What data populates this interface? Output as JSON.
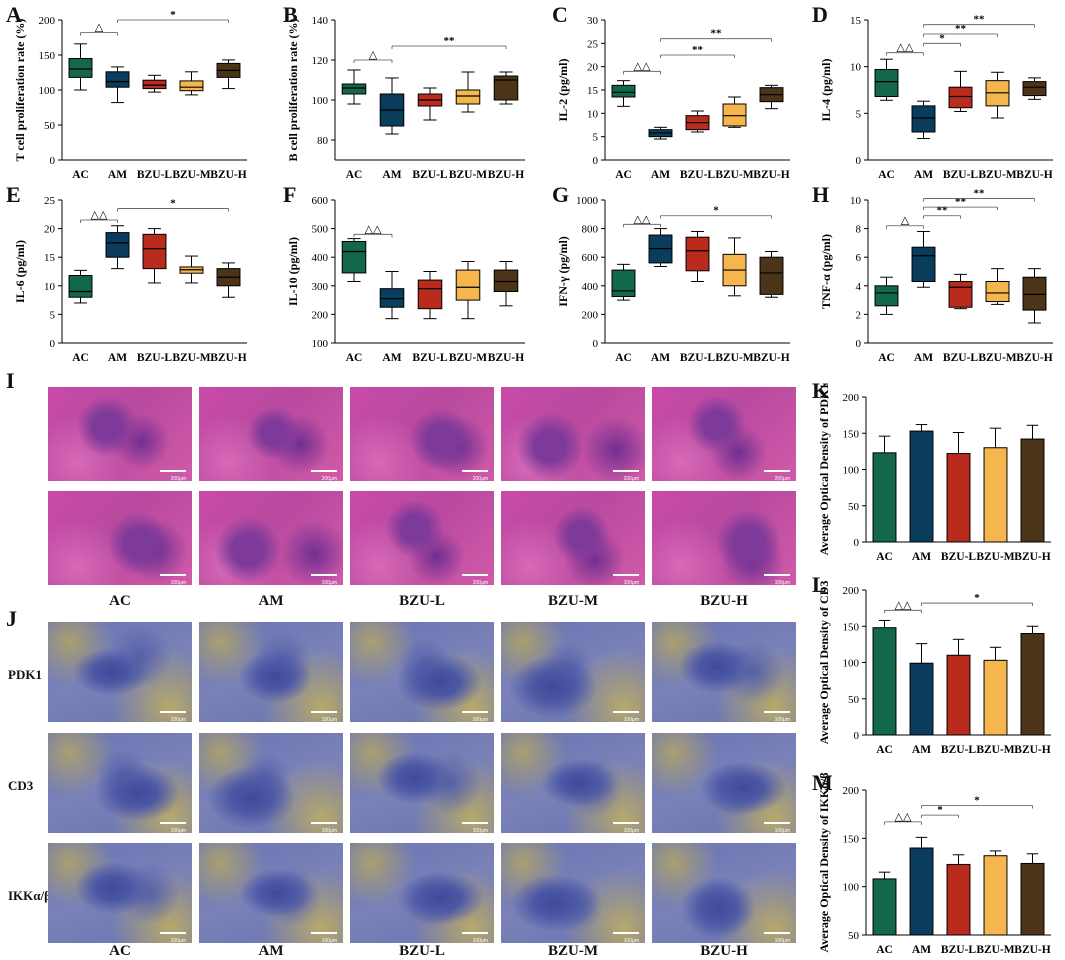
{
  "colors": {
    "AC": "#13674a",
    "AM": "#0a3c5e",
    "BZU-L": "#b92b1d",
    "BZU-M": "#f5b64e",
    "BZU-H": "#4c3419",
    "he_a": "#c84aa8",
    "he_b": "#7e3a9a",
    "ihc_a": "#6b74b4",
    "ihc_b": "#b7a96a"
  },
  "panel_letters": [
    "A",
    "B",
    "C",
    "D",
    "E",
    "F",
    "G",
    "H",
    "I",
    "J",
    "K",
    "L",
    "M"
  ],
  "images": {
    "I": {
      "columns": [
        "AC",
        "AM",
        "BZU-L",
        "BZU-M",
        "BZU-H"
      ],
      "scalebar_top": "200μm",
      "scalebar_bottom": "100μm"
    },
    "J": {
      "columns": [
        "AC",
        "AM",
        "BZU-L",
        "BZU-M",
        "BZU-H"
      ],
      "rows": [
        "PDK1",
        "CD3",
        "IKKα/β"
      ],
      "scalebar": "100μm"
    }
  },
  "chart_data": [
    {
      "id": "A",
      "type": "box",
      "title": "",
      "ylabel": "T cell proliferation rate (%)",
      "xlabel": "",
      "categories": [
        "AC",
        "AM",
        "BZU-L",
        "BZU-M",
        "BZU-H"
      ],
      "ylim": [
        0,
        200
      ],
      "yticks": [
        "0",
        "50",
        "100",
        "150",
        "200"
      ],
      "boxes": [
        [
          100,
          118,
          130,
          145,
          166
        ],
        [
          82,
          104,
          112,
          126,
          133
        ],
        [
          97,
          102,
          107,
          114,
          121
        ],
        [
          93,
          99,
          104,
          113,
          126
        ],
        [
          102,
          118,
          128,
          138,
          143
        ]
      ],
      "sig": [
        {
          "from": 0,
          "to": 1,
          "label": "△",
          "y": 182
        },
        {
          "from": 1,
          "to": 4,
          "label": "*",
          "y": 200
        }
      ]
    },
    {
      "id": "B",
      "type": "box",
      "title": "",
      "ylabel": "B cell proliferation rate (%)",
      "xlabel": "",
      "categories": [
        "AC",
        "AM",
        "BZU-L",
        "BZU-M",
        "BZU-H"
      ],
      "ylim": [
        70,
        140
      ],
      "yticks": [
        "80",
        "100",
        "120",
        "140"
      ],
      "boxes": [
        [
          98,
          103,
          106,
          108,
          115
        ],
        [
          83,
          87,
          95,
          103,
          111
        ],
        [
          90,
          97,
          100,
          103,
          106
        ],
        [
          94,
          98,
          102,
          105,
          114
        ],
        [
          98,
          100,
          110,
          112,
          114
        ]
      ],
      "sig": [
        {
          "from": 0,
          "to": 1,
          "label": "△",
          "y": 120
        },
        {
          "from": 1,
          "to": 4,
          "label": "**",
          "y": 127
        }
      ]
    },
    {
      "id": "C",
      "type": "box",
      "title": "",
      "ylabel": "IL-2 (pg/ml)",
      "xlabel": "",
      "categories": [
        "AC",
        "AM",
        "BZU-L",
        "BZU-M",
        "BZU-H"
      ],
      "ylim": [
        0,
        30
      ],
      "yticks": [
        "0",
        "5",
        "10",
        "15",
        "20",
        "25",
        "30"
      ],
      "boxes": [
        [
          11.5,
          13.5,
          14.5,
          16,
          17
        ],
        [
          4.5,
          5,
          5.8,
          6.5,
          7
        ],
        [
          6,
          6.5,
          8,
          9.5,
          10.5
        ],
        [
          7,
          7.3,
          9.5,
          12,
          13.5
        ],
        [
          11,
          12.5,
          14,
          15.5,
          16
        ]
      ],
      "sig": [
        {
          "from": 0,
          "to": 1,
          "label": "△△",
          "y": 19
        },
        {
          "from": 1,
          "to": 3,
          "label": "**",
          "y": 22.5
        },
        {
          "from": 1,
          "to": 4,
          "label": "**",
          "y": 26
        }
      ]
    },
    {
      "id": "D",
      "type": "box",
      "title": "",
      "ylabel": "IL-4 (pg/ml)",
      "xlabel": "",
      "categories": [
        "AC",
        "AM",
        "BZU-L",
        "BZU-M",
        "BZU-H"
      ],
      "ylim": [
        0,
        15
      ],
      "yticks": [
        "0",
        "5",
        "10",
        "15"
      ],
      "boxes": [
        [
          6.4,
          6.8,
          8.4,
          9.7,
          10.8
        ],
        [
          2.3,
          3,
          4.5,
          5.8,
          6.3
        ],
        [
          5.2,
          5.6,
          6.8,
          7.8,
          9.5
        ],
        [
          4.5,
          5.8,
          7.2,
          8.5,
          9.4
        ],
        [
          6.5,
          6.9,
          7.8,
          8.4,
          8.8
        ]
      ],
      "sig": [
        {
          "from": 0,
          "to": 1,
          "label": "△△",
          "y": 11.5
        },
        {
          "from": 1,
          "to": 2,
          "label": "*",
          "y": 12.5
        },
        {
          "from": 1,
          "to": 3,
          "label": "**",
          "y": 13.5
        },
        {
          "from": 1,
          "to": 4,
          "label": "**",
          "y": 14.5
        }
      ]
    },
    {
      "id": "E",
      "type": "box",
      "title": "",
      "ylabel": "IL-6 (pg/ml)",
      "xlabel": "",
      "categories": [
        "AC",
        "AM",
        "BZU-L",
        "BZU-M",
        "BZU-H"
      ],
      "ylim": [
        0,
        25
      ],
      "yticks": [
        "0",
        "5",
        "10",
        "15",
        "20",
        "25"
      ],
      "boxes": [
        [
          7,
          8,
          9,
          11.8,
          12.7
        ],
        [
          13,
          15,
          17.5,
          19.3,
          20.5
        ],
        [
          10.5,
          13,
          16.5,
          19,
          20
        ],
        [
          10.5,
          12.2,
          12.8,
          13.3,
          15.2
        ],
        [
          8,
          10,
          11.5,
          13,
          14
        ]
      ],
      "sig": [
        {
          "from": 0,
          "to": 1,
          "label": "△△",
          "y": 21.5
        },
        {
          "from": 1,
          "to": 4,
          "label": "*",
          "y": 23.5
        }
      ]
    },
    {
      "id": "F",
      "type": "box",
      "title": "",
      "ylabel": "IL-10 (pg/ml)",
      "xlabel": "",
      "categories": [
        "AC",
        "AM",
        "BZU-L",
        "BZU-M",
        "BZU-H"
      ],
      "ylim": [
        100,
        600
      ],
      "yticks": [
        "100",
        "200",
        "300",
        "400",
        "500",
        "600"
      ],
      "boxes": [
        [
          315,
          345,
          420,
          455,
          465
        ],
        [
          185,
          225,
          255,
          290,
          350
        ],
        [
          185,
          220,
          290,
          320,
          350
        ],
        [
          185,
          250,
          295,
          355,
          385
        ],
        [
          230,
          280,
          315,
          355,
          385
        ]
      ],
      "sig": [
        {
          "from": 0,
          "to": 1,
          "label": "△△",
          "y": 480
        }
      ]
    },
    {
      "id": "G",
      "type": "box",
      "title": "",
      "ylabel": "IFN-γ (pg/ml)",
      "xlabel": "",
      "categories": [
        "AC",
        "AM",
        "BZU-L",
        "BZU-M",
        "BZU-H"
      ],
      "ylim": [
        0,
        1000
      ],
      "yticks": [
        "0",
        "200",
        "400",
        "600",
        "800",
        "1000"
      ],
      "boxes": [
        [
          300,
          325,
          365,
          510,
          550
        ],
        [
          535,
          560,
          660,
          755,
          800
        ],
        [
          430,
          505,
          645,
          740,
          780
        ],
        [
          330,
          400,
          510,
          620,
          735
        ],
        [
          320,
          340,
          490,
          600,
          640
        ]
      ],
      "sig": [
        {
          "from": 0,
          "to": 1,
          "label": "△△",
          "y": 830
        },
        {
          "from": 1,
          "to": 4,
          "label": "*",
          "y": 890
        }
      ]
    },
    {
      "id": "H",
      "type": "box",
      "title": "",
      "ylabel": "TNF-α (pg/ml)",
      "xlabel": "",
      "categories": [
        "AC",
        "AM",
        "BZU-L",
        "BZU-M",
        "BZU-H"
      ],
      "ylim": [
        0,
        10
      ],
      "yticks": [
        "0",
        "2",
        "4",
        "6",
        "8",
        "10"
      ],
      "boxes": [
        [
          2,
          2.6,
          3.5,
          4,
          4.6
        ],
        [
          3.9,
          4.3,
          6.1,
          6.7,
          7.8
        ],
        [
          2.4,
          2.5,
          3.9,
          4.3,
          4.8
        ],
        [
          2.7,
          2.9,
          3.5,
          4.3,
          5.2
        ],
        [
          1.4,
          2.3,
          3.4,
          4.6,
          5.2
        ]
      ],
      "sig": [
        {
          "from": 0,
          "to": 1,
          "label": "△",
          "y": 8.2
        },
        {
          "from": 1,
          "to": 2,
          "label": "**",
          "y": 8.9
        },
        {
          "from": 1,
          "to": 3,
          "label": "**",
          "y": 9.5
        },
        {
          "from": 1,
          "to": 4,
          "label": "**",
          "y": 10.1
        }
      ]
    },
    {
      "id": "K",
      "type": "bar",
      "title": "",
      "ylabel": "Average Optical Density of PDK1",
      "xlabel": "",
      "categories": [
        "AC",
        "AM",
        "BZU-L",
        "BZU-M",
        "BZU-H"
      ],
      "ylim": [
        0,
        200
      ],
      "yticks": [
        "0",
        "50",
        "100",
        "150",
        "200"
      ],
      "values": [
        123,
        153,
        122,
        130,
        142
      ],
      "errors": [
        23,
        9,
        29,
        27,
        19
      ],
      "sig": []
    },
    {
      "id": "L",
      "type": "bar",
      "title": "",
      "ylabel": "Average Optical Density of CD3",
      "xlabel": "",
      "categories": [
        "AC",
        "AM",
        "BZU-L",
        "BZU-M",
        "BZU-H"
      ],
      "ylim": [
        0,
        200
      ],
      "yticks": [
        "0",
        "50",
        "100",
        "150",
        "200"
      ],
      "values": [
        148,
        99,
        110,
        103,
        140
      ],
      "errors": [
        10,
        27,
        22,
        18,
        10
      ],
      "sig": [
        {
          "from": 0,
          "to": 1,
          "label": "△△",
          "y": 172
        },
        {
          "from": 1,
          "to": 4,
          "label": "*",
          "y": 182
        }
      ]
    },
    {
      "id": "M",
      "type": "bar",
      "title": "",
      "ylabel": "Average Optical Density of IKKα/β",
      "xlabel": "",
      "categories": [
        "AC",
        "AM",
        "BZU-L",
        "BZU-M",
        "BZU-H"
      ],
      "ylim": [
        50,
        200
      ],
      "yticks": [
        "50",
        "100",
        "150",
        "200"
      ],
      "values": [
        108,
        140,
        123,
        132,
        124
      ],
      "errors": [
        7,
        11,
        10,
        5,
        10
      ],
      "sig": [
        {
          "from": 0,
          "to": 1,
          "label": "△△",
          "y": 167
        },
        {
          "from": 1,
          "to": 2,
          "label": "*",
          "y": 174
        },
        {
          "from": 1,
          "to": 4,
          "label": "*",
          "y": 184
        }
      ]
    }
  ]
}
